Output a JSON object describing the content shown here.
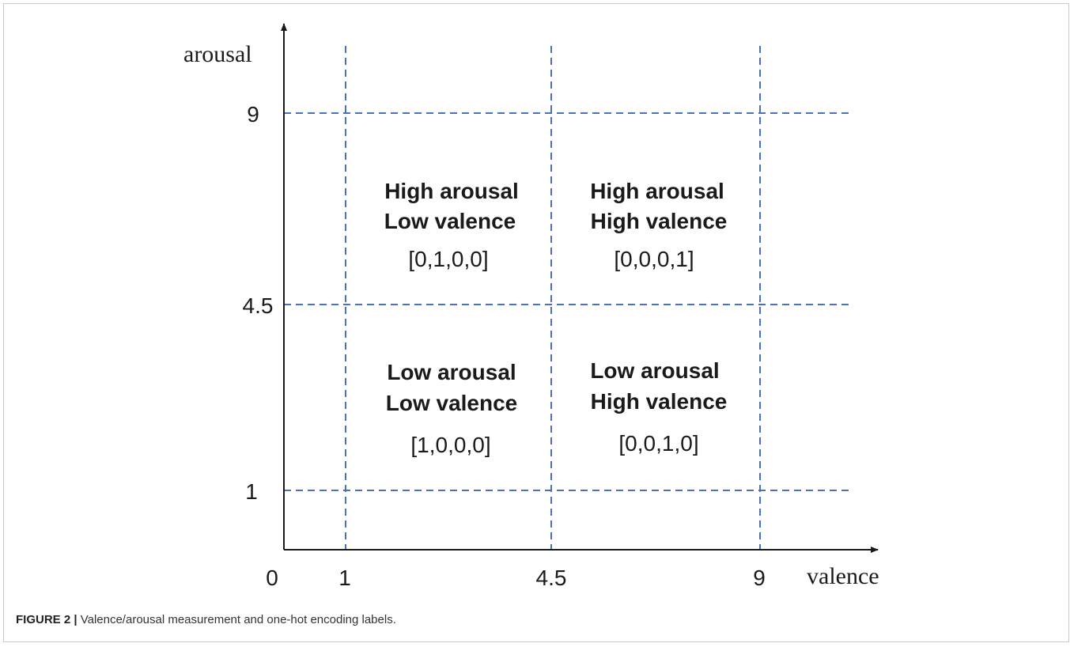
{
  "axes": {
    "x_title": "valence",
    "y_title": "arousal",
    "origin_label": "0",
    "x_ticks": [
      "1",
      "4.5",
      "9"
    ],
    "y_ticks": [
      "9",
      "4.5",
      "1"
    ]
  },
  "quadrants": [
    {
      "line1": "High arousal",
      "line2": "Low valence",
      "code": "[0,1,0,0]"
    },
    {
      "line1": "High arousal",
      "line2": "High valence",
      "code": "[0,0,0,1]"
    },
    {
      "line1": "Low arousal",
      "line2": "Low valence",
      "code": "[1,0,0,0]"
    },
    {
      "line1": "Low arousal",
      "line2": "High valence",
      "code": "[0,0,1,0]"
    }
  ],
  "caption": {
    "label": "FIGURE 2 |",
    "text": " Valence/arousal measurement and one-hot encoding labels."
  },
  "colors": {
    "grid": "#4a72b8",
    "axis": "#1a1a1a"
  }
}
